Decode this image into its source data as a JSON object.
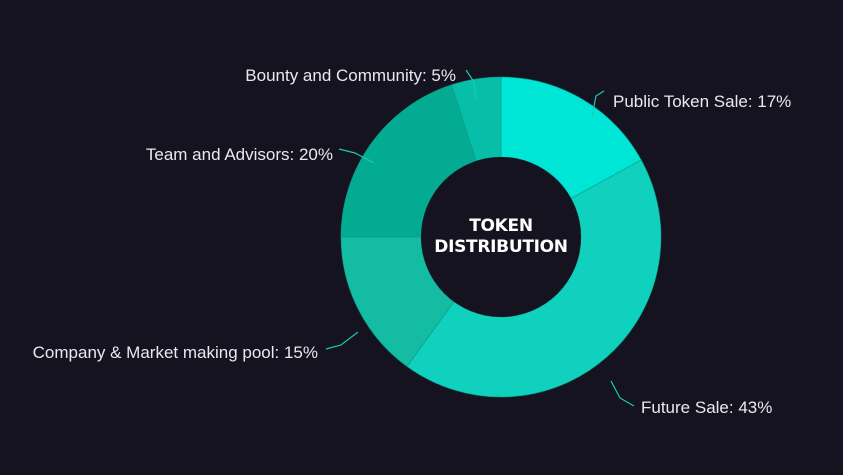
{
  "chart_data": {
    "type": "pie",
    "subtype": "donut",
    "title": "",
    "center_label": [
      "TOKEN",
      "DISTRIBUTION"
    ],
    "legend": "none",
    "label_placement": "outside-with-leader-lines",
    "slices": [
      {
        "label": "Public Token Sale: 17%",
        "name": "Public Token Sale",
        "value": 17,
        "color": "#00e6d6"
      },
      {
        "label": "Future Sale: 43%",
        "name": "Future Sale",
        "value": 43,
        "color": "#10d0be"
      },
      {
        "label": "Company & Market making pool: 15%",
        "name": "Company & Market making pool",
        "value": 15,
        "color": "#14bca4"
      },
      {
        "label": "Team and Advisors: 20%",
        "name": "Team and Advisors",
        "value": 20,
        "color": "#04ab93"
      },
      {
        "label": "Bounty and Community: 5%",
        "name": "Bounty and Community",
        "value": 5,
        "color": "#07bfa9"
      }
    ]
  },
  "colors": {
    "background": "#14131f",
    "hole": "#14131f",
    "label_text": "#e9e9ef",
    "leader_line": "#19c9b3",
    "slice_border": "#0a9a86"
  }
}
